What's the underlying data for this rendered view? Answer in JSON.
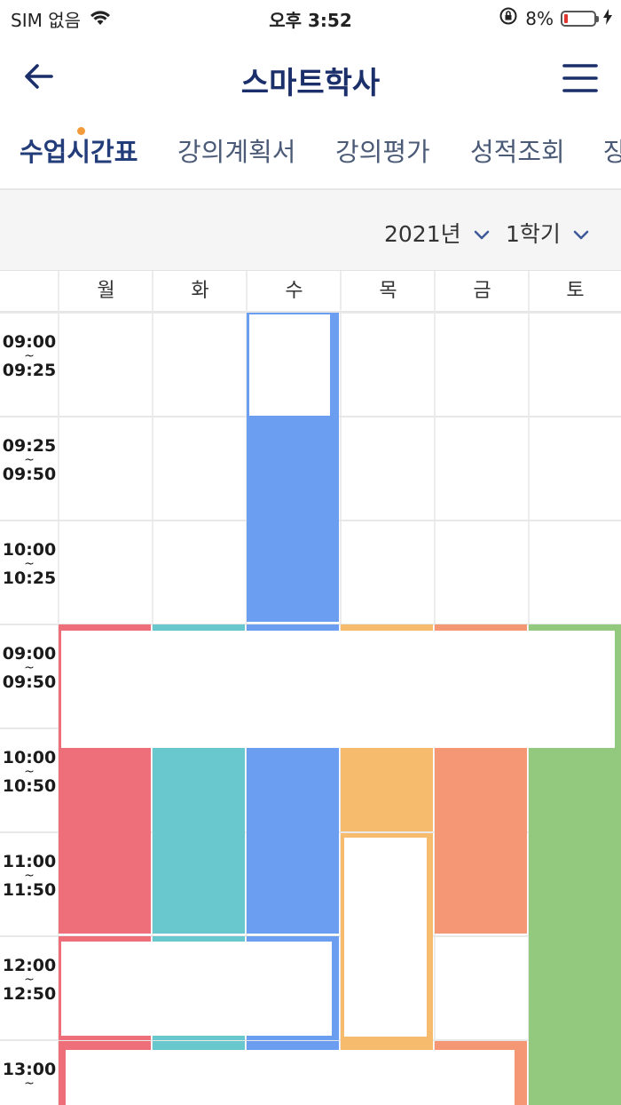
{
  "status_bar": {
    "carrier": "SIM 없음",
    "time": "오후 3:52",
    "battery": "8%",
    "battery_level": 0.08
  },
  "nav": {
    "title": "스마트학사",
    "icons": [
      "back-arrow-icon",
      "hamburger-menu-icon"
    ]
  },
  "tabs": [
    {
      "label": "수업시간표",
      "active": true
    },
    {
      "label": "강의계획서",
      "active": false
    },
    {
      "label": "강의평가",
      "active": false
    },
    {
      "label": "성적조회",
      "active": false
    },
    {
      "label": "장",
      "active": false
    }
  ],
  "filters": {
    "year": "2021년",
    "semester": "1학기"
  },
  "timetable": {
    "days": [
      "월",
      "화",
      "수",
      "목",
      "금",
      "토"
    ],
    "time_rows": [
      {
        "start": "09:00",
        "sep": "~",
        "end": "09:25"
      },
      {
        "start": "09:25",
        "sep": "~",
        "end": "09:50"
      },
      {
        "start": "10:00",
        "sep": "~",
        "end": "10:25"
      },
      {
        "start": "09:00",
        "sep": "~",
        "end": "09:50"
      },
      {
        "start": "10:00",
        "sep": "~",
        "end": "10:50"
      },
      {
        "start": "11:00",
        "sep": "~",
        "end": "11:50"
      },
      {
        "start": "12:00",
        "sep": "~",
        "end": "12:50"
      },
      {
        "start": "13:00",
        "sep": "~",
        "end": ""
      }
    ],
    "colors": {
      "mon": "#ee6f79",
      "tue": "#68c8cd",
      "wed": "#6b9ef0",
      "thu": "#f6bb6c",
      "fri": "#f59674",
      "sat": "#92c97e"
    }
  }
}
